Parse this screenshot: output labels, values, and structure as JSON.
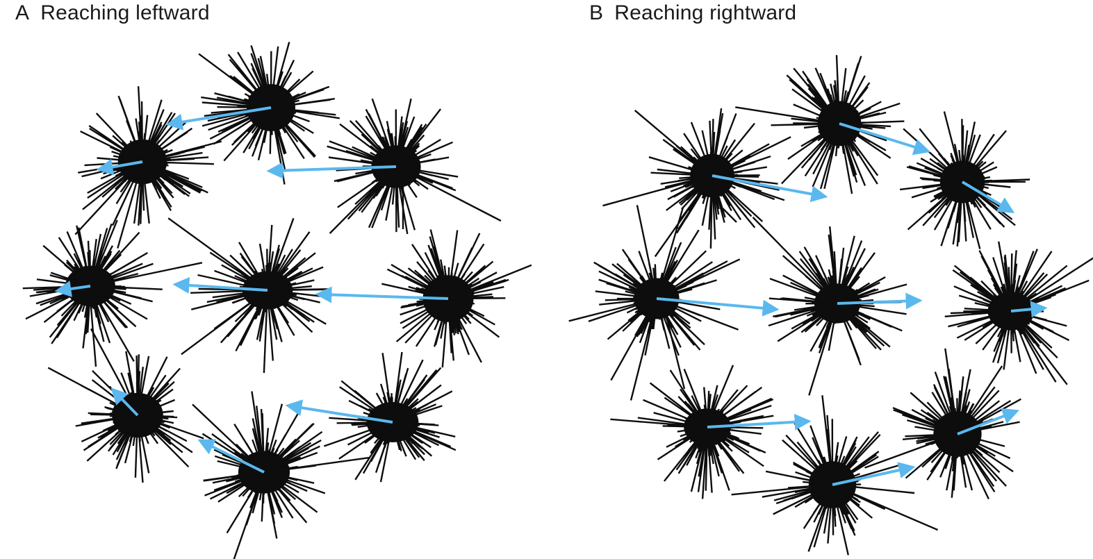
{
  "panels": [
    {
      "letter": "A",
      "title": "Reaching leftward"
    },
    {
      "letter": "B",
      "title": "Reaching rightward"
    }
  ],
  "colors": {
    "cluster": "#0d0d0d",
    "arrow": "#5ab8ee",
    "background": "#ffffff"
  },
  "icons": {
    "neuron_cluster": "starburst-icon",
    "vector": "arrow-icon"
  }
}
